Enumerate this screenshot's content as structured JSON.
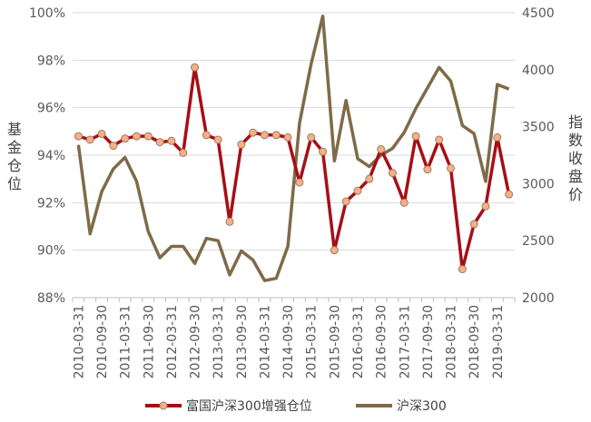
{
  "chart_data": {
    "type": "line",
    "categories": [
      "2010-03-31",
      "2010-06-30",
      "2010-09-30",
      "2010-12-31",
      "2011-03-31",
      "2011-06-30",
      "2011-09-30",
      "2011-12-31",
      "2012-03-31",
      "2012-06-30",
      "2012-09-30",
      "2012-12-31",
      "2013-03-31",
      "2013-06-30",
      "2013-09-30",
      "2013-12-31",
      "2014-03-31",
      "2014-06-30",
      "2014-09-30",
      "2014-12-31",
      "2015-03-31",
      "2015-06-30",
      "2015-09-30",
      "2015-12-31",
      "2016-03-31",
      "2016-06-30",
      "2016-09-30",
      "2016-12-31",
      "2017-03-31",
      "2017-06-30",
      "2017-09-30",
      "2017-12-31",
      "2018-03-31",
      "2018-06-30",
      "2018-09-30",
      "2018-12-31",
      "2019-03-31",
      "2019-06-30"
    ],
    "x_tick_labels": [
      "2010-03-31",
      "2010-09-30",
      "2011-03-31",
      "2011-09-30",
      "2012-03-31",
      "2012-09-30",
      "2013-03-31",
      "2013-09-30",
      "2014-03-31",
      "2014-09-30",
      "2015-03-31",
      "2015-09-30",
      "2016-03-31",
      "2016-09-30",
      "2017-03-31",
      "2017-09-30",
      "2018-03-31",
      "2018-09-30",
      "2019-03-31"
    ],
    "series": [
      {
        "name": "富国沪深300增强仓位",
        "axis": "left",
        "color": "#a50f15",
        "marker_color": "#f4b183",
        "values": [
          94.8,
          94.65,
          94.9,
          94.4,
          94.7,
          94.8,
          94.8,
          94.55,
          94.6,
          94.1,
          97.7,
          94.85,
          94.65,
          91.2,
          94.45,
          94.95,
          94.85,
          94.85,
          94.75,
          92.85,
          94.75,
          94.15,
          90.0,
          92.05,
          92.5,
          93.0,
          94.25,
          93.25,
          92.0,
          94.8,
          93.4,
          94.65,
          93.45,
          89.2,
          91.1,
          91.85,
          94.75,
          92.35
        ]
      },
      {
        "name": "沪深300",
        "axis": "right",
        "color": "#7f6a49",
        "values": [
          3340,
          2560,
          2930,
          3130,
          3230,
          3020,
          2580,
          2350,
          2450,
          2450,
          2300,
          2520,
          2500,
          2200,
          2410,
          2330,
          2150,
          2170,
          2450,
          3530,
          4050,
          4470,
          3200,
          3730,
          3220,
          3150,
          3250,
          3310,
          3450,
          3660,
          3840,
          4020,
          3900,
          3510,
          3440,
          3020,
          3870,
          3830
        ]
      }
    ],
    "y_left": {
      "label": "基金仓位",
      "ticks": [
        "88%",
        "90%",
        "92%",
        "94%",
        "96%",
        "98%",
        "100%"
      ],
      "min": 88,
      "max": 100
    },
    "y_right": {
      "label": "指数收盘价",
      "ticks": [
        "2000",
        "2500",
        "3000",
        "3500",
        "4000",
        "4500"
      ],
      "min": 2000,
      "max": 4500
    },
    "grid": true,
    "legend_position": "bottom"
  }
}
